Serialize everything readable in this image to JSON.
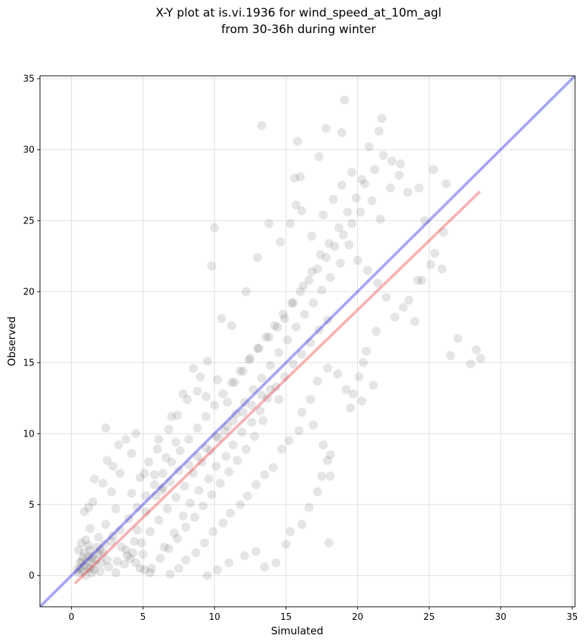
{
  "chart_data": {
    "type": "scatter",
    "title": [
      "X-Y plot at is.vi.1936 for wind_speed_at_10m_agl",
      "from 30-36h during winter"
    ],
    "xlabel": "Simulated",
    "ylabel": "Observed",
    "xlim": [
      -2.2,
      35.2
    ],
    "ylim": [
      -2.2,
      35.2
    ],
    "xticks": [
      0,
      5,
      10,
      15,
      20,
      25,
      30,
      35
    ],
    "yticks": [
      0,
      5,
      10,
      15,
      20,
      25,
      30,
      35
    ],
    "grid": true,
    "point_color": "#333333",
    "reference_lines": [
      {
        "kind": "identity",
        "color": "#0000ee",
        "from": [
          -2.2,
          -2.2
        ],
        "to": [
          35.2,
          35.2
        ]
      },
      {
        "kind": "fit",
        "color": "#ee2222",
        "from": [
          0.3,
          -0.5
        ],
        "to": [
          28.5,
          27.0
        ]
      }
    ],
    "points": [
      [
        1.1,
        0.6
      ],
      [
        0.8,
        0.3
      ],
      [
        1.4,
        1.2
      ],
      [
        0.6,
        0.9
      ],
      [
        1.9,
        1.5
      ],
      [
        1.2,
        2.1
      ],
      [
        0.9,
        1.6
      ],
      [
        0.5,
        0.2
      ],
      [
        1.6,
        0.4
      ],
      [
        2.1,
        0.9
      ],
      [
        0.7,
        2.3
      ],
      [
        1.3,
        3.3
      ],
      [
        0.9,
        4.5
      ],
      [
        1.2,
        4.8
      ],
      [
        1.5,
        5.2
      ],
      [
        1.6,
        6.8
      ],
      [
        2.4,
        10.4
      ],
      [
        3.8,
        9.6
      ],
      [
        4.5,
        10.0
      ],
      [
        3.3,
        9.2
      ],
      [
        2.5,
        8.1
      ],
      [
        2.9,
        7.7
      ],
      [
        3.4,
        7.2
      ],
      [
        4.2,
        8.6
      ],
      [
        2.2,
        6.5
      ],
      [
        2.8,
        5.9
      ],
      [
        3.1,
        4.7
      ],
      [
        2.4,
        3.6
      ],
      [
        2.9,
        2.8
      ],
      [
        3.5,
        2.0
      ],
      [
        4.1,
        1.2
      ],
      [
        4.8,
        0.5
      ],
      [
        5.5,
        0.2
      ],
      [
        3.8,
        1.8
      ],
      [
        4.6,
        3.2
      ],
      [
        5.2,
        4.5
      ],
      [
        5.9,
        5.6
      ],
      [
        6.4,
        6.2
      ],
      [
        5.8,
        7.1
      ],
      [
        6.6,
        8.3
      ],
      [
        6.1,
        9.6
      ],
      [
        7.3,
        9.4
      ],
      [
        7.0,
        11.2
      ],
      [
        7.8,
        12.8
      ],
      [
        8.5,
        14.6
      ],
      [
        9.0,
        14.0
      ],
      [
        9.5,
        15.1
      ],
      [
        10.2,
        13.8
      ],
      [
        10.9,
        12.2
      ],
      [
        11.4,
        13.6
      ],
      [
        12.0,
        14.4
      ],
      [
        12.5,
        15.3
      ],
      [
        13.1,
        16.0
      ],
      [
        13.8,
        16.8
      ],
      [
        14.4,
        17.5
      ],
      [
        14.9,
        18.1
      ],
      [
        15.5,
        19.2
      ],
      [
        16.2,
        20.4
      ],
      [
        16.8,
        21.4
      ],
      [
        17.4,
        22.6
      ],
      [
        18.0,
        23.4
      ],
      [
        18.7,
        24.5
      ],
      [
        19.3,
        25.6
      ],
      [
        19.9,
        26.6
      ],
      [
        20.5,
        27.6
      ],
      [
        21.2,
        28.6
      ],
      [
        21.8,
        29.6
      ],
      [
        22.4,
        29.2
      ],
      [
        23.0,
        29.0
      ],
      [
        21.5,
        31.3
      ],
      [
        21.7,
        32.2
      ],
      [
        19.1,
        33.5
      ],
      [
        15.8,
        30.6
      ],
      [
        13.3,
        31.7
      ],
      [
        17.3,
        29.5
      ],
      [
        17.8,
        31.5
      ],
      [
        18.9,
        31.2
      ],
      [
        20.8,
        30.2
      ],
      [
        15.6,
        28.0
      ],
      [
        16.0,
        28.1
      ],
      [
        10.0,
        24.5
      ],
      [
        9.8,
        21.8
      ],
      [
        10.5,
        18.1
      ],
      [
        11.2,
        17.6
      ],
      [
        12.2,
        20.0
      ],
      [
        13.0,
        22.4
      ],
      [
        13.8,
        24.8
      ],
      [
        14.6,
        23.5
      ],
      [
        15.3,
        24.8
      ],
      [
        15.7,
        26.1
      ],
      [
        16.1,
        25.7
      ],
      [
        16.8,
        23.9
      ],
      [
        17.6,
        25.4
      ],
      [
        18.3,
        26.5
      ],
      [
        18.9,
        27.5
      ],
      [
        19.6,
        28.4
      ],
      [
        20.3,
        27.9
      ],
      [
        21.0,
        26.4
      ],
      [
        21.6,
        25.1
      ],
      [
        22.3,
        27.3
      ],
      [
        22.9,
        28.2
      ],
      [
        23.5,
        27.0
      ],
      [
        24.3,
        27.3
      ],
      [
        24.7,
        25.0
      ],
      [
        25.3,
        28.6
      ],
      [
        26.0,
        24.2
      ],
      [
        26.2,
        27.6
      ],
      [
        25.4,
        22.7
      ],
      [
        25.9,
        21.6
      ],
      [
        25.1,
        21.9
      ],
      [
        24.2,
        20.8
      ],
      [
        23.6,
        19.4
      ],
      [
        22.6,
        18.2
      ],
      [
        21.3,
        17.2
      ],
      [
        20.6,
        15.8
      ],
      [
        20.4,
        15.0
      ],
      [
        20.1,
        14.0
      ],
      [
        19.7,
        12.8
      ],
      [
        19.5,
        11.8
      ],
      [
        20.3,
        12.3
      ],
      [
        21.1,
        13.4
      ],
      [
        19.2,
        13.1
      ],
      [
        18.6,
        14.2
      ],
      [
        17.9,
        14.6
      ],
      [
        17.2,
        13.7
      ],
      [
        16.7,
        12.4
      ],
      [
        16.1,
        11.5
      ],
      [
        15.9,
        10.2
      ],
      [
        15.2,
        9.5
      ],
      [
        14.7,
        8.9
      ],
      [
        14.1,
        7.6
      ],
      [
        13.5,
        7.1
      ],
      [
        12.9,
        6.4
      ],
      [
        12.3,
        5.6
      ],
      [
        11.8,
        5.0
      ],
      [
        11.1,
        4.4
      ],
      [
        10.6,
        3.7
      ],
      [
        9.9,
        3.1
      ],
      [
        9.3,
        2.3
      ],
      [
        8.7,
        1.6
      ],
      [
        8.0,
        1.1
      ],
      [
        7.5,
        0.5
      ],
      [
        6.9,
        0.1
      ],
      [
        9.5,
        0.0
      ],
      [
        10.2,
        0.4
      ],
      [
        11.0,
        0.9
      ],
      [
        12.1,
        1.4
      ],
      [
        12.9,
        1.7
      ],
      [
        13.5,
        0.6
      ],
      [
        14.3,
        0.9
      ],
      [
        15.0,
        2.2
      ],
      [
        15.3,
        3.1
      ],
      [
        16.1,
        3.6
      ],
      [
        16.6,
        4.8
      ],
      [
        17.2,
        5.9
      ],
      [
        17.5,
        7.0
      ],
      [
        17.9,
        8.1
      ],
      [
        18.1,
        8.5
      ],
      [
        17.6,
        9.2
      ],
      [
        16.9,
        10.6
      ],
      [
        18.0,
        2.3
      ],
      [
        18.1,
        7.0
      ],
      [
        24.5,
        20.8
      ],
      [
        27.0,
        16.7
      ],
      [
        26.5,
        15.5
      ],
      [
        27.9,
        14.9
      ],
      [
        28.3,
        15.9
      ],
      [
        28.6,
        15.3
      ],
      [
        24.0,
        17.9
      ],
      [
        23.2,
        18.9
      ],
      [
        22.0,
        19.6
      ],
      [
        21.4,
        20.6
      ],
      [
        20.7,
        21.5
      ],
      [
        20.0,
        22.2
      ],
      [
        19.4,
        23.3
      ],
      [
        18.8,
        22.0
      ],
      [
        18.1,
        21.0
      ],
      [
        17.5,
        20.1
      ],
      [
        16.9,
        19.2
      ],
      [
        16.3,
        18.4
      ],
      [
        15.7,
        17.5
      ],
      [
        15.1,
        16.6
      ],
      [
        14.5,
        15.7
      ],
      [
        13.9,
        14.8
      ],
      [
        13.3,
        13.9
      ],
      [
        12.7,
        13.1
      ],
      [
        12.1,
        12.2
      ],
      [
        11.5,
        11.4
      ],
      [
        10.9,
        10.5
      ],
      [
        10.3,
        9.7
      ],
      [
        9.7,
        8.8
      ],
      [
        9.1,
        8.0
      ],
      [
        8.5,
        7.2
      ],
      [
        7.9,
        6.3
      ],
      [
        7.3,
        5.5
      ],
      [
        6.7,
        4.7
      ],
      [
        6.1,
        3.9
      ],
      [
        5.5,
        3.1
      ],
      [
        4.9,
        2.3
      ],
      [
        4.3,
        1.6
      ],
      [
        3.7,
        0.8
      ],
      [
        3.1,
        0.2
      ],
      [
        2.5,
        1.1
      ],
      [
        1.9,
        2.7
      ],
      [
        1.3,
        1.8
      ],
      [
        0.7,
        1.0
      ],
      [
        0.4,
        0.4
      ],
      [
        1.0,
        0.0
      ],
      [
        1.6,
        0.8
      ],
      [
        2.2,
        1.6
      ],
      [
        2.8,
        2.4
      ],
      [
        3.4,
        3.2
      ],
      [
        4.0,
        4.0
      ],
      [
        4.6,
        4.8
      ],
      [
        5.2,
        5.6
      ],
      [
        5.8,
        6.4
      ],
      [
        6.4,
        7.2
      ],
      [
        7.0,
        8.0
      ],
      [
        7.6,
        8.8
      ],
      [
        8.2,
        9.6
      ],
      [
        8.8,
        10.4
      ],
      [
        9.4,
        11.2
      ],
      [
        10.0,
        12.0
      ],
      [
        10.6,
        12.8
      ],
      [
        11.2,
        13.6
      ],
      [
        11.8,
        14.4
      ],
      [
        12.4,
        15.2
      ],
      [
        13.0,
        16.0
      ],
      [
        13.6,
        16.8
      ],
      [
        14.2,
        17.6
      ],
      [
        14.8,
        18.4
      ],
      [
        15.4,
        19.2
      ],
      [
        16.0,
        20.0
      ],
      [
        16.6,
        20.8
      ],
      [
        17.2,
        21.6
      ],
      [
        17.8,
        22.4
      ],
      [
        18.4,
        23.2
      ],
      [
        19.0,
        24.0
      ],
      [
        19.6,
        24.8
      ],
      [
        20.2,
        25.6
      ],
      [
        6.5,
        2.0
      ],
      [
        7.2,
        3.0
      ],
      [
        7.8,
        4.2
      ],
      [
        8.3,
        5.1
      ],
      [
        8.9,
        6.0
      ],
      [
        9.6,
        6.8
      ],
      [
        10.1,
        7.7
      ],
      [
        10.8,
        8.4
      ],
      [
        11.3,
        9.2
      ],
      [
        11.9,
        10.1
      ],
      [
        12.6,
        10.8
      ],
      [
        13.2,
        11.6
      ],
      [
        13.7,
        12.5
      ],
      [
        14.3,
        13.3
      ],
      [
        14.9,
        14.0
      ],
      [
        15.5,
        14.9
      ],
      [
        16.1,
        15.6
      ],
      [
        16.7,
        16.4
      ],
      [
        17.3,
        17.3
      ],
      [
        17.9,
        18.0
      ],
      [
        4.2,
        5.8
      ],
      [
        4.8,
        6.9
      ],
      [
        5.4,
        8.0
      ],
      [
        5.1,
        7.2
      ],
      [
        6.0,
        8.9
      ],
      [
        6.8,
        10.3
      ],
      [
        7.4,
        11.3
      ],
      [
        8.1,
        12.4
      ],
      [
        8.8,
        13.0
      ],
      [
        9.4,
        12.6
      ],
      [
        6.3,
        6.0
      ],
      [
        6.9,
        6.6
      ],
      [
        7.5,
        7.4
      ],
      [
        8.2,
        7.8
      ],
      [
        8.8,
        8.4
      ],
      [
        9.4,
        9.0
      ],
      [
        10.1,
        9.8
      ],
      [
        10.7,
        10.2
      ],
      [
        11.3,
        10.9
      ],
      [
        12.0,
        11.5
      ],
      [
        12.6,
        12.0
      ],
      [
        13.3,
        12.7
      ],
      [
        13.9,
        13.1
      ],
      [
        14.5,
        12.4
      ],
      [
        13.4,
        10.9
      ],
      [
        12.8,
        9.8
      ],
      [
        12.2,
        8.9
      ],
      [
        11.6,
        8.1
      ],
      [
        11.0,
        7.3
      ],
      [
        10.4,
        6.5
      ],
      [
        9.8,
        5.7
      ],
      [
        9.2,
        4.9
      ],
      [
        8.6,
        4.1
      ],
      [
        8.0,
        3.4
      ],
      [
        7.4,
        2.6
      ],
      [
        6.8,
        1.9
      ],
      [
        6.2,
        1.2
      ],
      [
        5.6,
        0.5
      ],
      [
        5.0,
        1.5
      ],
      [
        4.4,
        2.4
      ],
      [
        2.0,
        0.3
      ],
      [
        2.6,
        0.6
      ],
      [
        3.2,
        1.0
      ],
      [
        3.9,
        1.4
      ],
      [
        4.5,
        0.9
      ],
      [
        5.1,
        0.4
      ],
      [
        0.9,
        0.7
      ],
      [
        1.1,
        1.0
      ],
      [
        1.3,
        0.5
      ],
      [
        0.6,
        0.5
      ],
      [
        1.5,
        1.4
      ],
      [
        1.8,
        2.0
      ],
      [
        2.3,
        2.2
      ],
      [
        0.8,
        1.3
      ],
      [
        1.0,
        2.5
      ],
      [
        1.4,
        0.2
      ],
      [
        0.5,
        1.8
      ],
      [
        1.7,
        1.1
      ],
      [
        2.0,
        1.8
      ],
      [
        1.2,
        1.3
      ]
    ]
  }
}
